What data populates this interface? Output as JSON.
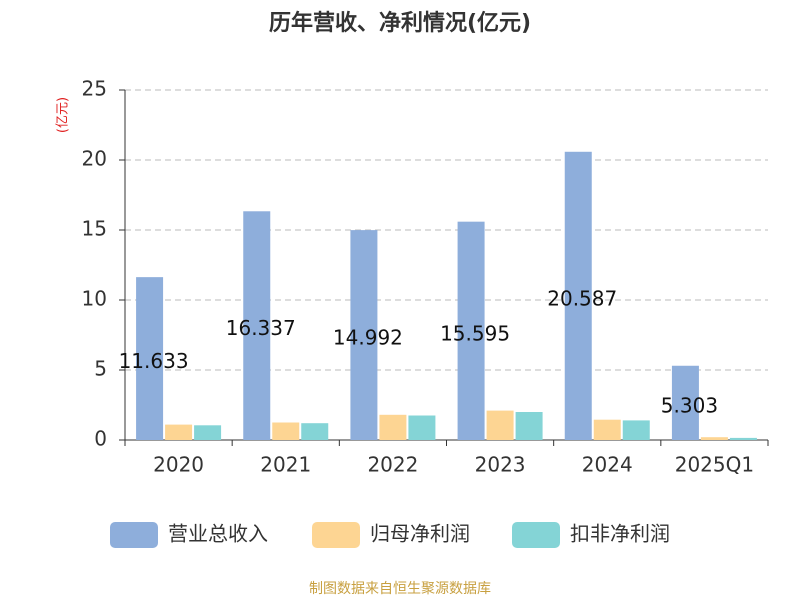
{
  "chart_data": {
    "type": "bar",
    "title": "历年营收、净利情况(亿元)",
    "y_unit_label": "(亿元)",
    "source": "制图数据来自恒生聚源数据库",
    "categories": [
      "2020",
      "2021",
      "2022",
      "2023",
      "2024",
      "2025Q1"
    ],
    "series": [
      {
        "name": "营业总收入",
        "color": "#8eaedb",
        "values": [
          11.633,
          16.337,
          14.992,
          15.595,
          20.587,
          5.303
        ],
        "data_labels": true
      },
      {
        "name": "归母净利润",
        "color": "#fdd593",
        "values": [
          1.1,
          1.25,
          1.8,
          2.1,
          1.45,
          0.2
        ],
        "data_labels": false
      },
      {
        "name": "扣非净利润",
        "color": "#84d4d6",
        "values": [
          1.05,
          1.2,
          1.75,
          2.0,
          1.4,
          0.15
        ],
        "data_labels": false
      }
    ],
    "ylim": [
      0,
      25
    ],
    "yticks": [
      0,
      5,
      10,
      15,
      20,
      25
    ],
    "grid": true
  }
}
